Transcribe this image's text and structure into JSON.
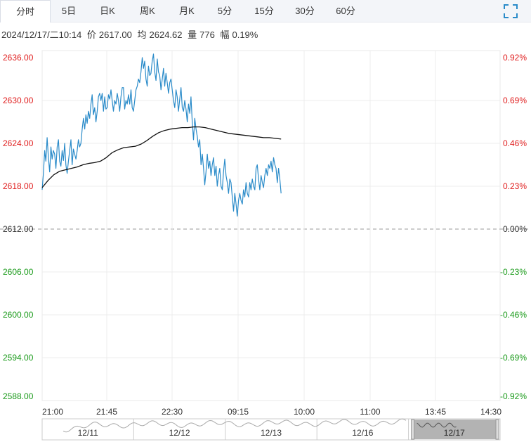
{
  "tabs": [
    {
      "label": "分时",
      "active": true
    },
    {
      "label": "5日",
      "active": false
    },
    {
      "label": "日K",
      "active": false
    },
    {
      "label": "周K",
      "active": false
    },
    {
      "label": "月K",
      "active": false
    },
    {
      "label": "5分",
      "active": false
    },
    {
      "label": "15分",
      "active": false
    },
    {
      "label": "30分",
      "active": false
    },
    {
      "label": "60分",
      "active": false
    }
  ],
  "fullscreen_icon": "expand-icon",
  "info": {
    "datetime": "2024/12/17/二10:14",
    "price_label": "价",
    "price": "2617.00",
    "avg_label": "均",
    "avg": "2624.62",
    "vol_label": "量",
    "vol": "776",
    "chg_label": "幅",
    "chg": "0.19%"
  },
  "colors": {
    "up": "#e02020",
    "down": "#1a9a1a",
    "price_line": "#2a8bc9",
    "avg_line": "#111111",
    "ref_line": "#999999"
  },
  "chart_data": {
    "type": "line",
    "ref_price": 2612.0,
    "ylim": [
      2588.0,
      2636.0
    ],
    "y_ticks": [
      "2636.00",
      "2630.00",
      "2624.00",
      "2618.00",
      "2612.00",
      "2606.00",
      "2600.00",
      "2594.00",
      "2588.00"
    ],
    "y_ticks_right": [
      "0.92%",
      "0.69%",
      "0.46%",
      "0.23%",
      "0.00%",
      "-0.23%",
      "-0.46%",
      "-0.69%",
      "-0.92%"
    ],
    "x_ticks": [
      "21:00",
      "21:45",
      "22:30",
      "09:15",
      "10:00",
      "11:00",
      "13:45",
      "14:30"
    ],
    "x_total_minutes": 345,
    "series": [
      {
        "key": "price",
        "values": [
          2617.5,
          2619.8,
          2623.0,
          2621.5,
          2624.8,
          2622.0,
          2620.0,
          2623.5,
          2621.8,
          2623.0,
          2622.5,
          2620.5,
          2623.5,
          2624.5,
          2621.5,
          2620.8,
          2623.0,
          2621.6,
          2624.0,
          2621.0,
          2619.8,
          2621.5,
          2623.0,
          2624.5,
          2621.0,
          2623.2,
          2622.5,
          2621.8,
          2623.0,
          2624.5,
          2623.5,
          2624.0,
          2626.0,
          2627.5,
          2626.0,
          2628.0,
          2626.8,
          2628.5,
          2627.5,
          2629.5,
          2630.8,
          2628.0,
          2629.0,
          2627.0,
          2628.5,
          2630.5,
          2631.0,
          2630.0,
          2631.0,
          2628.5,
          2630.5,
          2628.8,
          2629.0,
          2630.8,
          2630.2,
          2631.5,
          2630.0,
          2628.5,
          2630.0,
          2629.5,
          2631.0,
          2630.0,
          2628.5,
          2630.5,
          2631.8,
          2631.8,
          2628.8,
          2630.0,
          2629.5,
          2630.8,
          2629.5,
          2631.5,
          2629.0,
          2628.5,
          2630.0,
          2631.5,
          2632.0,
          2633.0,
          2632.5,
          2634.0,
          2636.0,
          2634.5,
          2635.5,
          2633.0,
          2632.0,
          2634.8,
          2633.5,
          2633.8,
          2635.5,
          2636.5,
          2634.0,
          2632.8,
          2635.8,
          2634.0,
          2633.5,
          2631.5,
          2633.0,
          2634.5,
          2632.0,
          2633.8,
          2632.5,
          2631.0,
          2632.5,
          2633.0,
          2631.5,
          2630.0,
          2629.0,
          2631.5,
          2630.5,
          2628.5,
          2630.2,
          2631.8,
          2629.0,
          2628.5,
          2630.0,
          2628.8,
          2627.0,
          2629.5,
          2628.2,
          2630.5,
          2627.0,
          2624.5,
          2627.5,
          2626.0,
          2625.0,
          2623.5,
          2624.5,
          2621.0,
          2622.5,
          2620.5,
          2618.2,
          2620.0,
          2622.5,
          2620.5,
          2621.5,
          2619.5,
          2621.0,
          2622.0,
          2619.5,
          2620.8,
          2618.0,
          2619.5,
          2620.5,
          2618.0,
          2617.5,
          2620.0,
          2621.8,
          2619.5,
          2618.5,
          2617.0,
          2619.0,
          2618.5,
          2616.5,
          2614.5,
          2617.0,
          2615.5,
          2613.8,
          2616.0,
          2617.0,
          2616.0,
          2615.5,
          2617.5,
          2616.5,
          2618.5,
          2617.0,
          2616.5,
          2618.5,
          2617.5,
          2619.0,
          2618.0,
          2617.5,
          2620.5,
          2621.0,
          2619.0,
          2617.5,
          2619.5,
          2618.5,
          2617.8,
          2619.5,
          2620.5,
          2619.5,
          2621.0,
          2620.5,
          2621.5,
          2620.0,
          2622.0,
          2621.0,
          2620.5,
          2618.5,
          2620.5,
          2619.0,
          2617.0
        ],
        "x_start": 0,
        "x_end": 180
      },
      {
        "key": "avg",
        "values": [
          2617.8,
          2618.8,
          2619.6,
          2620.1,
          2620.3,
          2620.5,
          2620.7,
          2621.0,
          2621.2,
          2621.3,
          2621.5,
          2622.0,
          2622.7,
          2623.1,
          2623.4,
          2623.5,
          2623.6,
          2623.9,
          2624.4,
          2625.0,
          2625.5,
          2625.8,
          2626.0,
          2626.1,
          2626.2,
          2626.2,
          2626.3,
          2626.3,
          2626.2,
          2626.0,
          2625.8,
          2625.6,
          2625.4,
          2625.3,
          2625.2,
          2625.1,
          2625.0,
          2624.9,
          2624.8,
          2624.8,
          2624.7,
          2624.6
        ],
        "x_start": 0,
        "x_end": 180
      }
    ],
    "navigator": {
      "labels": [
        "12/11",
        "12/12",
        "12/13",
        "12/16",
        "12/17"
      ]
    }
  }
}
